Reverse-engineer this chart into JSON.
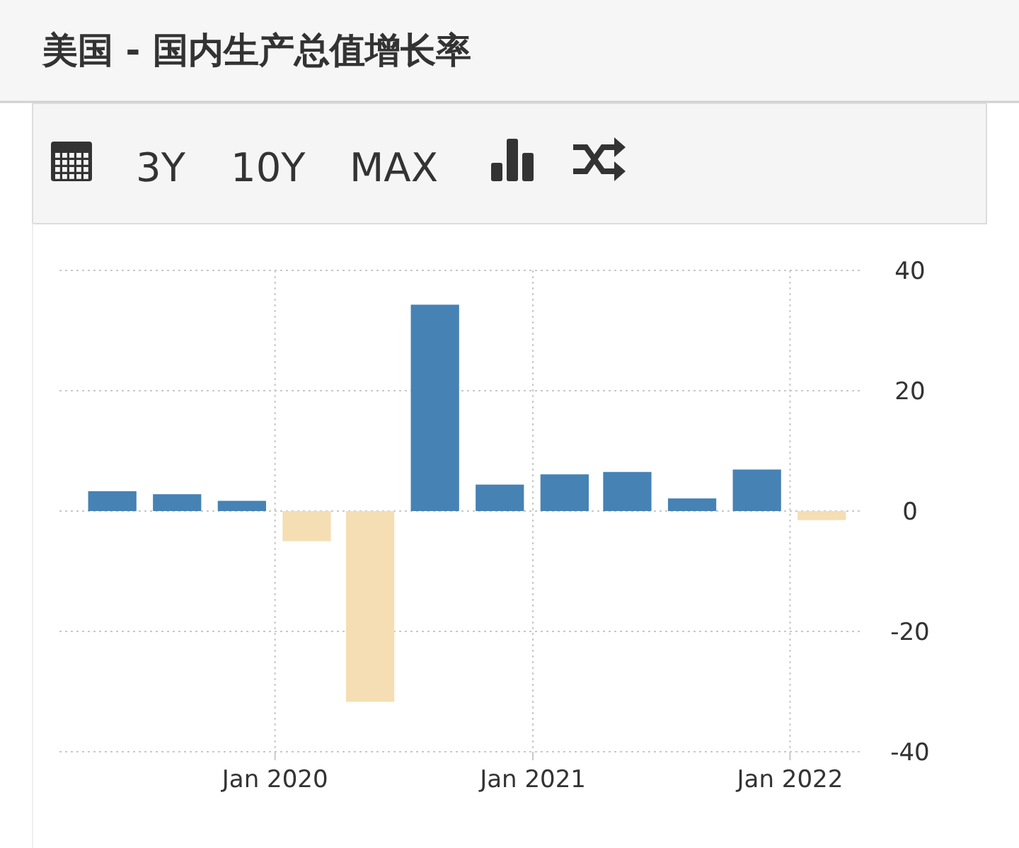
{
  "chart_data": {
    "type": "bar",
    "title": "美国 - 国内生产总值增长率",
    "annotations": [
      "3Y",
      "10Y",
      "MAX"
    ],
    "x": [
      "2019-05-15",
      "2019-08-15",
      "2019-11-15",
      "2020-02-15",
      "2020-05-15",
      "2020-08-15",
      "2020-11-15",
      "2021-02-15",
      "2021-05-15",
      "2021-08-15",
      "2021-11-15",
      "2022-02-15"
    ],
    "values": [
      3.3,
      2.8,
      1.7,
      -5.0,
      -31.7,
      34.3,
      4.4,
      6.1,
      6.5,
      2.1,
      6.9,
      -1.5
    ],
    "colors": [
      "#4682b4",
      "#4682b4",
      "#4682b4",
      "#f5deb3",
      "#f5deb3",
      "#4682b4",
      "#4682b4",
      "#4682b4",
      "#4682b4",
      "#4682b4",
      "#4682b4",
      "#f5deb3"
    ],
    "xlim": [
      "2019-03-01",
      "2022-04-15"
    ],
    "xticks": [
      {
        "value": "2020-01-01",
        "label": "Jan 2020"
      },
      {
        "value": "2021-01-01",
        "label": "Jan 2021"
      },
      {
        "value": "2022-01-01",
        "label": "Jan 2022"
      }
    ],
    "ylim": [
      -40,
      40
    ],
    "yticks": [
      40,
      20,
      0,
      -20,
      -40
    ],
    "grid": true
  }
}
